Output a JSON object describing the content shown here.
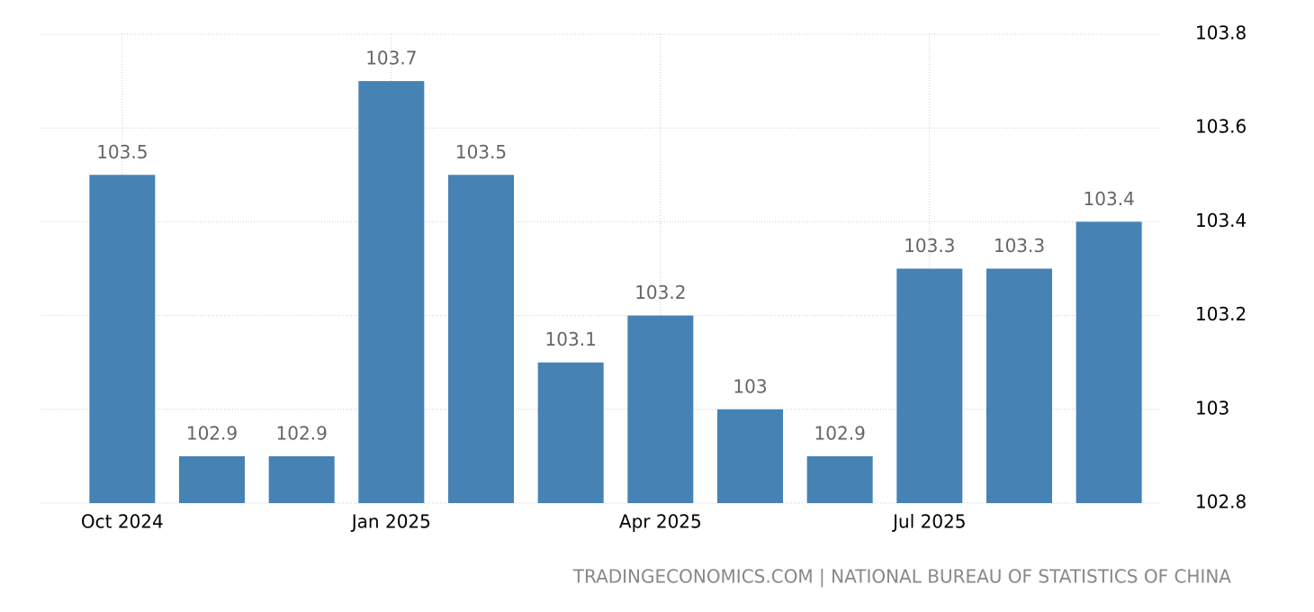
{
  "chart_data": {
    "type": "bar",
    "categories": [
      "Oct 2024",
      null,
      null,
      "Jan 2025",
      null,
      null,
      "Apr 2025",
      null,
      null,
      "Jul 2025",
      null,
      null
    ],
    "values": [
      103.5,
      102.9,
      102.9,
      103.7,
      103.5,
      103.1,
      103.2,
      103,
      102.9,
      103.3,
      103.3,
      103.4
    ],
    "color": "#4682b4",
    "ylim": [
      102.8,
      103.8
    ],
    "yticks": [
      102.8,
      103,
      103.2,
      103.4,
      103.6,
      103.8
    ],
    "grid": true,
    "source": "TRADINGECONOMICS.COM | NATIONAL BUREAU OF STATISTICS OF CHINA"
  }
}
